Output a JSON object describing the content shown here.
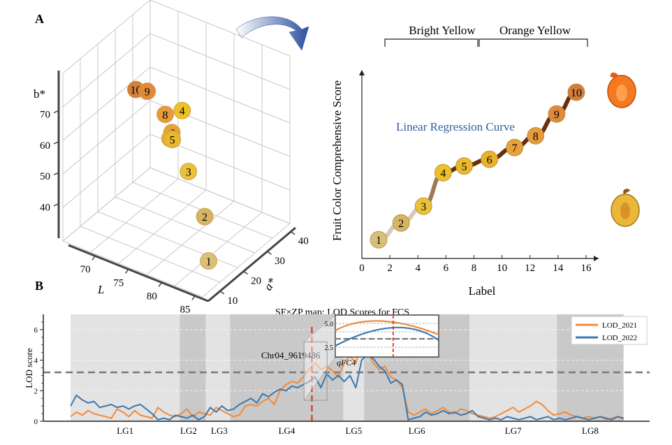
{
  "panels": {
    "a_label": "A",
    "b_label": "B"
  },
  "colors": {
    "lod_2021": "#f28a3a",
    "lod_2022": "#3a78b0",
    "threshold": "#777777",
    "marker_line": "#e0312c",
    "title_blue": "#2f5f9e",
    "band_light": "#e3e3e3",
    "band_dark": "#c9c9c9",
    "curve_brown": "#6b2e0b",
    "point_palette": [
      "#d9c07a",
      "#d4b564",
      "#e8c23a",
      "#ecc026",
      "#e8b92e",
      "#e8b22c",
      "#e9a13a",
      "#e59a3c",
      "#e08a3a",
      "#d37f3a"
    ]
  },
  "chart_data": [
    {
      "type": "scatter",
      "subtype": "3d",
      "axes": {
        "z_label": "b*",
        "x_label": "L",
        "y_label": "a*",
        "z_ticks": [
          "70",
          "60",
          "50",
          "40"
        ],
        "x_ticks": [
          "70",
          "75",
          "80",
          "85"
        ],
        "y_ticks": [
          "10",
          "20",
          "30",
          "40"
        ]
      },
      "points": [
        {
          "label": "1",
          "L": 84,
          "a": 16,
          "b": 30
        },
        {
          "label": "2",
          "L": 82,
          "a": 20,
          "b": 40
        },
        {
          "label": "3",
          "L": 76,
          "a": 30,
          "b": 43
        },
        {
          "label": "4",
          "L": 74,
          "a": 33,
          "b": 59
        },
        {
          "label": "5",
          "L": 75,
          "a": 26,
          "b": 55
        },
        {
          "label": "6",
          "L": 75,
          "a": 25,
          "b": 56
        },
        {
          "label": "7",
          "L": 76,
          "a": 23,
          "b": 60
        },
        {
          "label": "8",
          "L": 75,
          "a": 23,
          "b": 65
        },
        {
          "label": "9",
          "L": 73,
          "a": 21,
          "b": 72
        },
        {
          "label": "10",
          "L": 72,
          "a": 19,
          "b": 73
        }
      ]
    },
    {
      "type": "line",
      "ylabel": "Fruit Color Comprehensive Score",
      "xlabel": "Label",
      "x_ticks": [
        "0",
        "2",
        "4",
        "6",
        "8",
        "10",
        "12",
        "14",
        "16"
      ],
      "xlim": [
        0,
        16
      ],
      "annotation": "Linear Regression Curve",
      "groups": [
        "Bright Yellow",
        "Orange Yellow"
      ],
      "points": [
        {
          "label": "1",
          "x": 1.2,
          "score": 0.02
        },
        {
          "label": "2",
          "x": 2.8,
          "score": 0.12
        },
        {
          "label": "3",
          "x": 4.4,
          "score": 0.22
        },
        {
          "label": "4",
          "x": 5.8,
          "score": 0.42
        },
        {
          "label": "5",
          "x": 7.3,
          "score": 0.46
        },
        {
          "label": "6",
          "x": 9.1,
          "score": 0.5
        },
        {
          "label": "7",
          "x": 10.9,
          "score": 0.57
        },
        {
          "label": "8",
          "x": 12.4,
          "score": 0.64
        },
        {
          "label": "9",
          "x": 13.9,
          "score": 0.77
        },
        {
          "label": "10",
          "x": 15.3,
          "score": 0.9
        }
      ]
    },
    {
      "type": "line",
      "title": "SF×ZP map: LOD Scores for FCS",
      "ylabel": "LOD score",
      "y_ticks": [
        "0",
        "2",
        "4",
        "6"
      ],
      "ylim": [
        0,
        7
      ],
      "threshold": 3.2,
      "linkage_groups": [
        "LG1",
        "LG2",
        "LG3",
        "LG4",
        "LG5",
        "LG6",
        "LG7",
        "LG8"
      ],
      "marker_label": "Chr04_9619486",
      "inset_label": "qFC4",
      "inset_y_ticks": [
        "5.0",
        "2.5"
      ],
      "legend": {
        "position": "top-right",
        "items": [
          "LOD_2021",
          "LOD_2022"
        ]
      },
      "series": [
        {
          "name": "LOD_2021",
          "values": [
            0.3,
            0.6,
            0.4,
            0.7,
            0.5,
            0.4,
            0.3,
            0.2,
            0.8,
            0.6,
            0.3,
            0.7,
            0.4,
            0.3,
            0.2,
            0.9,
            0.6,
            0.4,
            0.3,
            0.5,
            0.8,
            0.3,
            0.6,
            0.5,
            0.4,
            0.9,
            0.7,
            0.5,
            0.3,
            0.4,
            1.0,
            1.1,
            1.0,
            1.3,
            1.5,
            1.1,
            2.0,
            2.4,
            2.6,
            2.5,
            2.9,
            3.4,
            3.8,
            3.4,
            3.6,
            3.3,
            2.9,
            3.8,
            4.3,
            3.8,
            5.3,
            4.6,
            3.8,
            3.4,
            3.6,
            2.9,
            2.7,
            2.2,
            0.6,
            0.4,
            0.6,
            0.8,
            0.5,
            0.7,
            0.9,
            0.6,
            0.5,
            0.8,
            0.7,
            0.5,
            0.4,
            0.3,
            0.2,
            0.3,
            0.5,
            0.7,
            0.9,
            0.6,
            0.8,
            1.0,
            1.3,
            1.1,
            0.7,
            0.4,
            0.5,
            0.6,
            0.4,
            0.3,
            0.2,
            0.3,
            0.2,
            0.3,
            0.1,
            0.2,
            0.3,
            0.1
          ]
        },
        {
          "name": "LOD_2022",
          "values": [
            1.0,
            1.7,
            1.4,
            1.2,
            1.3,
            0.9,
            1.0,
            1.1,
            0.9,
            1.0,
            0.8,
            1.0,
            1.1,
            0.8,
            0.5,
            0.1,
            0.2,
            0.1,
            0.4,
            0.3,
            0.2,
            0.4,
            0.1,
            0.3,
            0.9,
            0.6,
            1.0,
            0.7,
            0.8,
            1.1,
            1.3,
            1.5,
            1.2,
            1.8,
            1.6,
            1.9,
            2.1,
            2.0,
            2.3,
            2.2,
            2.4,
            2.6,
            2.9,
            2.2,
            3.1,
            2.7,
            3.0,
            2.6,
            3.0,
            2.2,
            4.0,
            4.4,
            4.1,
            3.6,
            3.3,
            2.5,
            2.7,
            2.4,
            0.1,
            0.2,
            0.3,
            0.6,
            0.4,
            0.5,
            0.7,
            0.5,
            0.6,
            0.4,
            0.5,
            0.7,
            0.3,
            0.2,
            0.1,
            0.2,
            0.1,
            0.3,
            0.2,
            0.1,
            0.2,
            0.3,
            0.1,
            0.2,
            0.3,
            0.1,
            0.2,
            0.1,
            0.2,
            0.3,
            0.2,
            0.1,
            0.2,
            0.3,
            0.2,
            0.1,
            0.3,
            0.2
          ]
        }
      ]
    }
  ]
}
